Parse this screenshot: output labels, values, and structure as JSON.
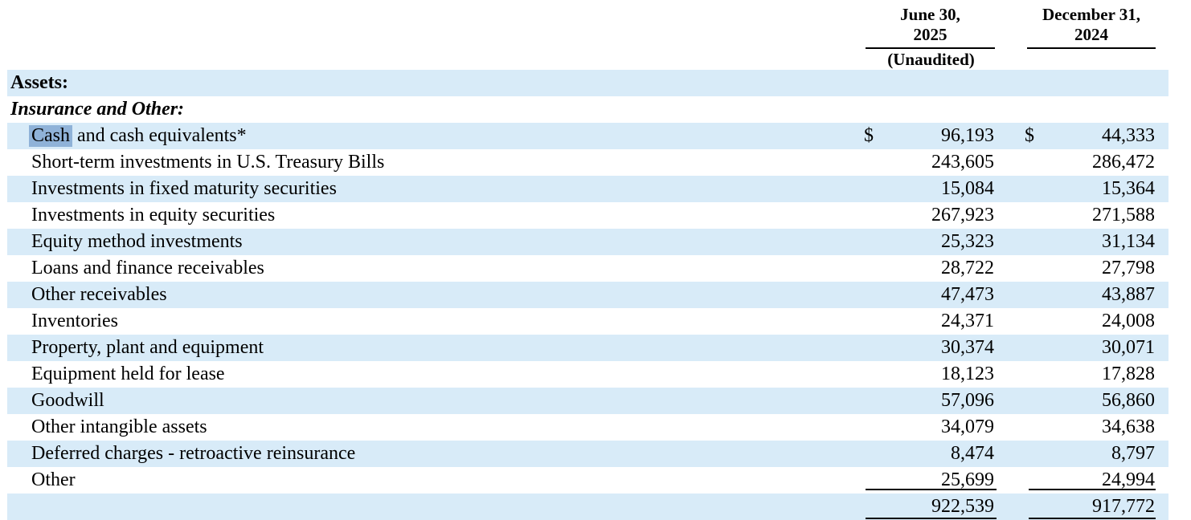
{
  "table": {
    "colors": {
      "row_shade": "#d8ebf8",
      "selection": "#8fb2d8",
      "text": "#000000",
      "rule": "#000000"
    },
    "columns": [
      {
        "line1": "June 30,",
        "line2": "2025",
        "note": "(Unaudited)"
      },
      {
        "line1": "December 31,",
        "line2": "2024",
        "note": ""
      }
    ],
    "rows": [
      {
        "class": "section",
        "label": "Assets:",
        "shaded": true
      },
      {
        "class": "section-italic",
        "label": "Insurance and Other:",
        "shaded": false
      },
      {
        "class": "item",
        "label_highlight": "Cash",
        "label_rest": " and cash equivalents*",
        "shaded": true,
        "cur1": "$",
        "v1": "96,193",
        "cur2": "$",
        "v2": "44,333"
      },
      {
        "class": "item",
        "label": "Short-term investments in U.S. Treasury Bills",
        "shaded": false,
        "v1": "243,605",
        "v2": "286,472"
      },
      {
        "class": "item",
        "label": "Investments in fixed maturity securities",
        "shaded": true,
        "v1": "15,084",
        "v2": "15,364"
      },
      {
        "class": "item",
        "label": "Investments in equity securities",
        "shaded": false,
        "v1": "267,923",
        "v2": "271,588"
      },
      {
        "class": "item",
        "label": "Equity method investments",
        "shaded": true,
        "v1": "25,323",
        "v2": "31,134"
      },
      {
        "class": "item",
        "label": "Loans and finance receivables",
        "shaded": false,
        "v1": "28,722",
        "v2": "27,798"
      },
      {
        "class": "item",
        "label": "Other receivables",
        "shaded": true,
        "v1": "47,473",
        "v2": "43,887"
      },
      {
        "class": "item",
        "label": "Inventories",
        "shaded": false,
        "v1": "24,371",
        "v2": "24,008"
      },
      {
        "class": "item",
        "label": "Property, plant and equipment",
        "shaded": true,
        "v1": "30,374",
        "v2": "30,071"
      },
      {
        "class": "item",
        "label": "Equipment held for lease",
        "shaded": false,
        "v1": "18,123",
        "v2": "17,828"
      },
      {
        "class": "item",
        "label": "Goodwill",
        "shaded": true,
        "v1": "57,096",
        "v2": "56,860"
      },
      {
        "class": "item",
        "label": "Other intangible assets",
        "shaded": false,
        "v1": "34,079",
        "v2": "34,638"
      },
      {
        "class": "item",
        "label": "Deferred charges - retroactive reinsurance",
        "shaded": true,
        "v1": "8,474",
        "v2": "8,797"
      },
      {
        "class": "item",
        "label": "Other",
        "shaded": false,
        "v1": "25,699",
        "v2": "24,994",
        "rule": "rule-a"
      },
      {
        "class": "total",
        "label": "",
        "shaded": true,
        "v1": "922,539",
        "v2": "917,772",
        "rule": "rule-b"
      }
    ]
  }
}
